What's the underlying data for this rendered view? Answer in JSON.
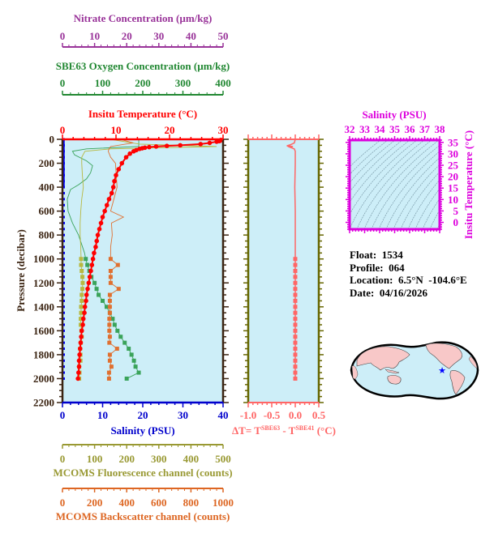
{
  "chart_data": [
    {
      "type": "line",
      "title": "Float profile",
      "ylabel": "Pressure (decibar)",
      "ylim": [
        2200,
        0
      ],
      "yticks": [
        0,
        200,
        400,
        600,
        800,
        1000,
        1200,
        1400,
        1600,
        1800,
        2000,
        2200
      ],
      "axes": {
        "temperature": {
          "label": "Insitu Temperature (°C)",
          "ticks": [
            0,
            10,
            20,
            30
          ],
          "range": [
            0,
            30
          ],
          "color": "#ff0000"
        },
        "salinity": {
          "label": "Salinity (PSU)",
          "ticks": [
            0,
            10,
            20,
            30,
            40
          ],
          "range": [
            0,
            40
          ],
          "color": "#0000cc"
        },
        "nitrate": {
          "label": "Nitrate Concentration (µm/kg)",
          "ticks": [
            0,
            10,
            20,
            30,
            40,
            50
          ],
          "range": [
            0,
            50
          ],
          "color": "#993399"
        },
        "oxygen": {
          "label": "SBE63 Oxygen Concentration (µm/kg)",
          "ticks": [
            0,
            100,
            200,
            300,
            400
          ],
          "range": [
            0,
            400
          ],
          "color": "#228833"
        },
        "fluorescence": {
          "label": "MCOMS Fluorescence channel (counts)",
          "ticks": [
            0,
            100,
            200,
            300,
            400,
            500
          ],
          "range": [
            0,
            500
          ],
          "color": "#999933"
        },
        "backscatter": {
          "label": "MCOMS Backscatter channel (counts)",
          "ticks": [
            0,
            200,
            400,
            600,
            800,
            1000
          ],
          "range": [
            0,
            1000
          ],
          "color": "#dd6622"
        }
      },
      "series": [
        {
          "name": "Temperature",
          "axis": "temperature",
          "pressure": [
            5,
            10,
            15,
            20,
            30,
            40,
            50,
            55,
            60,
            65,
            70,
            75,
            80,
            90,
            100,
            120,
            150,
            200,
            250,
            300,
            350,
            400,
            450,
            500,
            550,
            600,
            650,
            700,
            750,
            800,
            850,
            900,
            950,
            1000,
            1050,
            1100,
            1150,
            1200,
            1250,
            1300,
            1350,
            1400,
            1450,
            1500,
            1550,
            1600,
            1650,
            1700,
            1750,
            1800,
            1850,
            1900,
            1950,
            2000
          ],
          "values": [
            29.6,
            29.5,
            29.3,
            28.8,
            27.5,
            25.8,
            22,
            19.5,
            17.5,
            16.2,
            15.4,
            14.9,
            14.4,
            13.8,
            13.3,
            12.6,
            11.9,
            11.1,
            10.5,
            10.0,
            9.7,
            9.5,
            9.2,
            8.7,
            8.3,
            7.9,
            7.5,
            7.2,
            6.9,
            6.6,
            6.4,
            6.2,
            5.9,
            5.7,
            5.5,
            5.3,
            5.1,
            4.9,
            4.7,
            4.5,
            4.4,
            4.2,
            4.1,
            3.9,
            3.8,
            3.6,
            3.5,
            3.4,
            3.3,
            3.2,
            3.1,
            3.1,
            3.0,
            2.9
          ]
        },
        {
          "name": "Salinity",
          "axis": "salinity",
          "pressure": [
            0,
            2000
          ],
          "values": [
            34.4,
            34.6
          ]
        },
        {
          "name": "Oxygen",
          "axis": "oxygen",
          "pressure": [
            0,
            40,
            60,
            80,
            100,
            130,
            180,
            220,
            280,
            330,
            380,
            420,
            500,
            600,
            700,
            800,
            900,
            950,
            1000,
            1050,
            1100,
            1150,
            1200,
            1250,
            1300,
            1350,
            1400,
            1450,
            1500,
            1550,
            1600,
            1650,
            1700,
            1750,
            1800,
            1850,
            1900,
            1950,
            2000
          ],
          "values": [
            190,
            190,
            190,
            60,
            25,
            30,
            60,
            75,
            70,
            60,
            40,
            20,
            12,
            14,
            25,
            40,
            50,
            55,
            58,
            62,
            67,
            72,
            80,
            85,
            90,
            100,
            110,
            118,
            125,
            130,
            137,
            145,
            155,
            165,
            172,
            178,
            182,
            190,
            160
          ]
        },
        {
          "name": "Fluorescence",
          "axis": "fluorescence",
          "pressure": [
            0,
            40,
            60,
            80,
            100,
            150,
            200,
            300,
            400,
            500,
            600,
            700,
            800,
            900,
            1000,
            1050,
            1100,
            1150,
            1200,
            1250,
            1300,
            1350,
            1400,
            1450,
            1500,
            1550,
            1600,
            1650,
            1700,
            1750,
            1800,
            1850,
            1900,
            1950,
            2000
          ],
          "values": [
            150,
            240,
            480,
            150,
            70,
            60,
            60,
            62,
            65,
            60,
            57,
            55,
            55,
            57,
            58,
            58,
            60,
            62,
            63,
            62,
            60,
            60,
            58,
            58,
            57,
            57,
            59,
            60,
            57,
            55,
            56,
            56,
            52,
            53,
            52
          ]
        },
        {
          "name": "Backscatter",
          "axis": "backscatter",
          "pressure": [
            0,
            30,
            60,
            80,
            100,
            150,
            200,
            300,
            400,
            500,
            600,
            650,
            700,
            800,
            900,
            1000,
            1050,
            1100,
            1150,
            1200,
            1250,
            1300,
            1350,
            1400,
            1450,
            1500,
            1550,
            1600,
            1650,
            1700,
            1750,
            1800,
            1850,
            1900,
            1950,
            2000
          ],
          "values": [
            360,
            440,
            300,
            290,
            285,
            300,
            330,
            335,
            340,
            320,
            300,
            380,
            305,
            310,
            300,
            300,
            345,
            300,
            300,
            300,
            350,
            295,
            295,
            295,
            295,
            292,
            292,
            292,
            295,
            292,
            340,
            295,
            295,
            305,
            290,
            290
          ]
        },
        {
          "name": "Nitrate",
          "axis": "nitrate",
          "pressure": [],
          "values": []
        }
      ]
    },
    {
      "type": "line",
      "title": "Temperature difference",
      "xlabel": "ΔT= T^SBE63 - T^SBE41 (°C)",
      "xticks": [
        -1.0,
        -0.5,
        0.0,
        0.5
      ],
      "xlim": [
        -1.0,
        0.5
      ],
      "ylim": [
        2200,
        0
      ],
      "series": [
        {
          "name": "dT",
          "pressure": [
            0,
            30,
            45,
            55,
            60,
            65,
            80,
            100,
            200,
            400,
            600,
            800,
            1000,
            1050,
            1100,
            1150,
            1200,
            1250,
            1300,
            1350,
            1400,
            1450,
            1500,
            1550,
            1600,
            1650,
            1700,
            1750,
            1800,
            1850,
            1900,
            1950,
            2000
          ],
          "values": [
            0.0,
            -0.02,
            -0.1,
            -0.18,
            -0.05,
            -0.12,
            -0.02,
            0.0,
            0.0,
            -0.01,
            0.0,
            0.0,
            0.0,
            0.0,
            0.0,
            0.0,
            0.0,
            0.0,
            0.0,
            0.0,
            0.0,
            0.0,
            0.0,
            0.0,
            0.0,
            0.0,
            0.0,
            0.0,
            0.0,
            0.0,
            0.0,
            0.0,
            0.0
          ]
        }
      ]
    },
    {
      "type": "scatter",
      "title": "T-S diagram",
      "xlabel": "Salinity (PSU)",
      "ylabel": "Insitu Temperature (°C)",
      "xticks": [
        32,
        33,
        34,
        35,
        36,
        37,
        38
      ],
      "yticks": [
        0,
        5,
        10,
        15,
        20,
        25,
        30,
        35
      ],
      "xlim": [
        32,
        38
      ],
      "ylim": [
        -3,
        36
      ],
      "note": "background density (sigma) contours, no profile points visible"
    }
  ],
  "labels": {
    "nitrate_axis": "Nitrate Concentration (µm/kg)",
    "oxygen_axis": "SBE63 Oxygen Concentration (µm/kg)",
    "temperature_axis": "Insitu Temperature (°C)",
    "pressure_axis": "Pressure (decibar)",
    "salinity_axis": "Salinity (PSU)",
    "fluorescence_axis": "MCOMS Fluorescence channel (counts)",
    "backscatter_axis": "MCOMS Backscatter channel (counts)",
    "ts_salinity_axis": "Salinity (PSU)",
    "ts_temperature_axis": "Insitu Temperature (°C)",
    "dt_prefix": "ΔT= T",
    "dt_sup1": "SBE63",
    "dt_mid": " - T",
    "dt_sup2": "SBE41",
    "dt_unit": " (°C)"
  },
  "info": {
    "float": "Float:  1534",
    "profile": "Profile:  064",
    "location": "Location:  6.5°N  -104.6°E",
    "date": "Date:  04/16/2026"
  },
  "map": {
    "marker_lat": 6.5,
    "marker_lon": -104.6,
    "marker_icon": "star-icon",
    "marker_color": "#0000ff"
  },
  "colors": {
    "plot_bg": "#cdeef8",
    "frame": "#3b2412",
    "dt_frame": "#666600",
    "ts_frame": "#dd00dd",
    "dt_line": "#ff6666",
    "land": "#f8c8c8"
  }
}
